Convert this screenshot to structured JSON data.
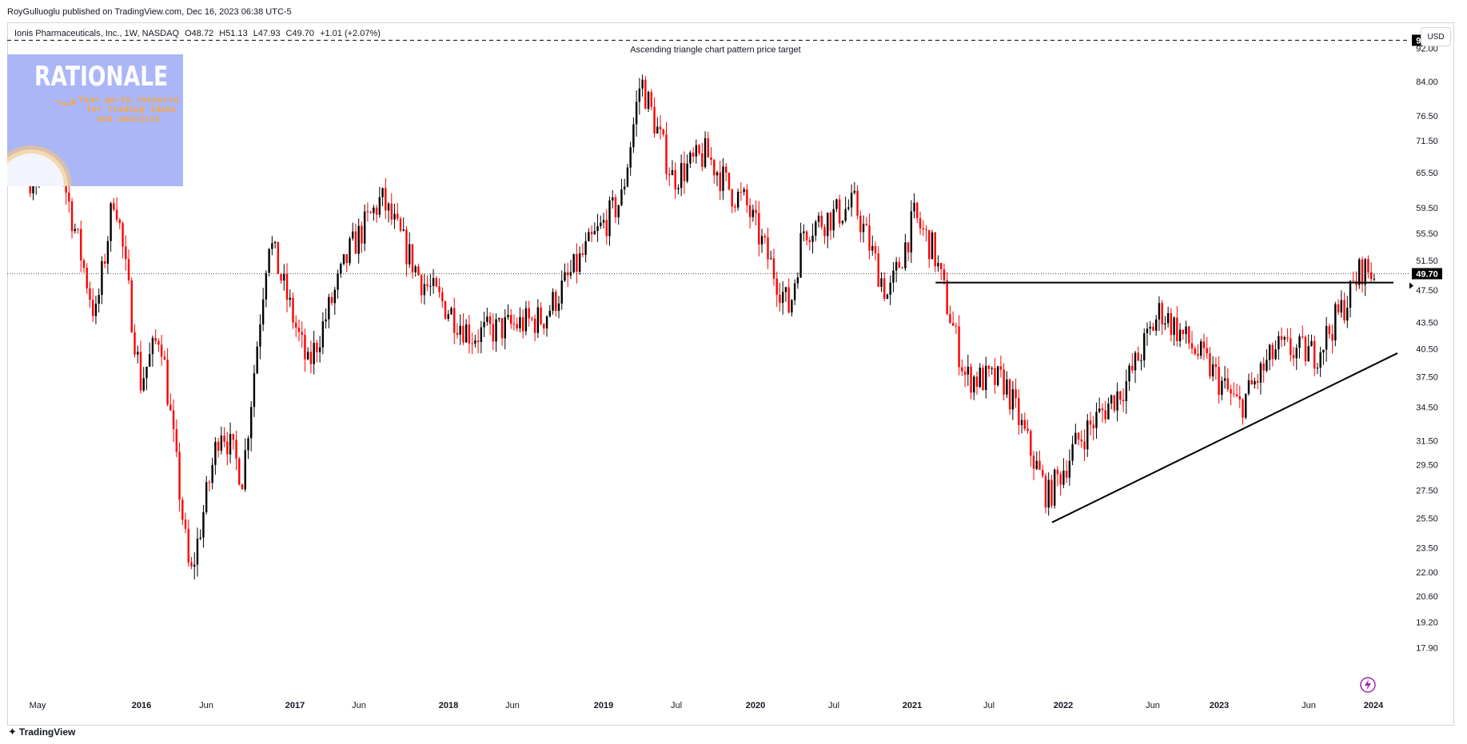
{
  "header": {
    "published_by": "RoyGulluoglu published on TradingView.com, Dec 16, 2023 06:38 UTC-5"
  },
  "symbol": {
    "name": "Ionis Pharmaceuticals, Inc., 1W, NASDAQ",
    "open": "O48.72",
    "high": "H51.13",
    "low": "L47.93",
    "close": "C49.70",
    "change": "+1.01 (+2.07%)"
  },
  "currency": "USD",
  "logo": {
    "title": "RATIONALE",
    "line1": "Your go-to resource",
    "line2": "for trading ideas",
    "line3": "and analysis"
  },
  "footer": {
    "brand": "TradingView"
  },
  "colors": {
    "up": "#000000",
    "down": "#ff0000",
    "trendline": "#000000",
    "target_line": "#000000",
    "logo_bg": "#aab6f6",
    "logo_accent": "#f5a84a",
    "price_label_bg": "#000000"
  },
  "chart_data": {
    "type": "candlestick",
    "scale": "log",
    "y_axis_ticks": [
      "92.00",
      "84.00",
      "76.50",
      "71.50",
      "65.50",
      "59.50",
      "55.50",
      "51.50",
      "47.50",
      "43.50",
      "40.50",
      "37.50",
      "34.50",
      "31.50",
      "29.50",
      "27.50",
      "25.50",
      "23.50",
      "22.00",
      "20.60",
      "19.20",
      "17.90"
    ],
    "x_axis_labels": [
      "May",
      "2016",
      "Jun",
      "2017",
      "Jun",
      "2018",
      "Jun",
      "2019",
      "Jul",
      "2020",
      "Jul",
      "2021",
      "Jul",
      "2022",
      "Jun",
      "2023",
      "Jun",
      "2024"
    ],
    "ylim": [
      16.6,
      97.0
    ],
    "last_price": "49.70",
    "target_price": "94.00",
    "annotations": {
      "target_label": "Ascending triangle chart pattern price target"
    },
    "anchors": [
      {
        "date": "2015-05-01",
        "close": 64.8
      },
      {
        "date": "2015-07-10",
        "close": 67.0
      },
      {
        "date": "2015-10-01",
        "close": 44.0
      },
      {
        "date": "2015-11-15",
        "close": 62.5
      },
      {
        "date": "2016-01-15",
        "close": 37.0
      },
      {
        "date": "2016-03-01",
        "close": 42.5
      },
      {
        "date": "2016-05-10",
        "close": 21.5
      },
      {
        "date": "2016-07-20",
        "close": 33.0
      },
      {
        "date": "2016-09-10",
        "close": 28.5
      },
      {
        "date": "2016-11-10",
        "close": 55.0
      },
      {
        "date": "2017-02-10",
        "close": 38.5
      },
      {
        "date": "2017-05-20",
        "close": 53.0
      },
      {
        "date": "2017-08-01",
        "close": 61.0
      },
      {
        "date": "2017-11-01",
        "close": 49.0
      },
      {
        "date": "2018-03-01",
        "close": 42.0
      },
      {
        "date": "2018-08-15",
        "close": 44.0
      },
      {
        "date": "2018-12-15",
        "close": 55.0
      },
      {
        "date": "2019-02-15",
        "close": 61.0
      },
      {
        "date": "2019-04-01",
        "close": 84.5
      },
      {
        "date": "2019-06-15",
        "close": 64.5
      },
      {
        "date": "2019-09-01",
        "close": 69.0
      },
      {
        "date": "2019-11-01",
        "close": 62.0
      },
      {
        "date": "2019-12-01",
        "close": 60.5
      },
      {
        "date": "2020-03-15",
        "close": 45.0
      },
      {
        "date": "2020-04-15",
        "close": 56.0
      },
      {
        "date": "2020-08-15",
        "close": 60.0
      },
      {
        "date": "2020-11-01",
        "close": 46.5
      },
      {
        "date": "2021-01-01",
        "close": 58.0
      },
      {
        "date": "2021-02-15",
        "close": 53.0
      },
      {
        "date": "2021-05-01",
        "close": 37.5
      },
      {
        "date": "2021-08-01",
        "close": 37.0
      },
      {
        "date": "2021-11-10",
        "close": 27.0
      },
      {
        "date": "2022-01-20",
        "close": 31.5
      },
      {
        "date": "2022-05-15",
        "close": 37.0
      },
      {
        "date": "2022-08-01",
        "close": 45.0
      },
      {
        "date": "2022-11-15",
        "close": 39.0
      },
      {
        "date": "2023-02-01",
        "close": 34.5
      },
      {
        "date": "2023-05-01",
        "close": 40.5
      },
      {
        "date": "2023-08-01",
        "close": 40.0
      },
      {
        "date": "2023-10-15",
        "close": 46.5
      },
      {
        "date": "2023-11-15",
        "close": 50.5
      },
      {
        "date": "2023-12-15",
        "close": 49.7
      }
    ],
    "horizontal_lines": [
      {
        "name": "resistance",
        "price": 48.5,
        "from": "2021-02-20",
        "to": "2023-12-31"
      },
      {
        "name": "target",
        "price": 94.0,
        "from": "2015-04-01",
        "to": "2024-03-01"
      }
    ],
    "trendlines": [
      {
        "name": "ascending-support",
        "from": {
          "date": "2021-11-20",
          "price": 25.2
        },
        "to": {
          "date": "2024-03-01",
          "price": 40.0
        }
      }
    ]
  }
}
